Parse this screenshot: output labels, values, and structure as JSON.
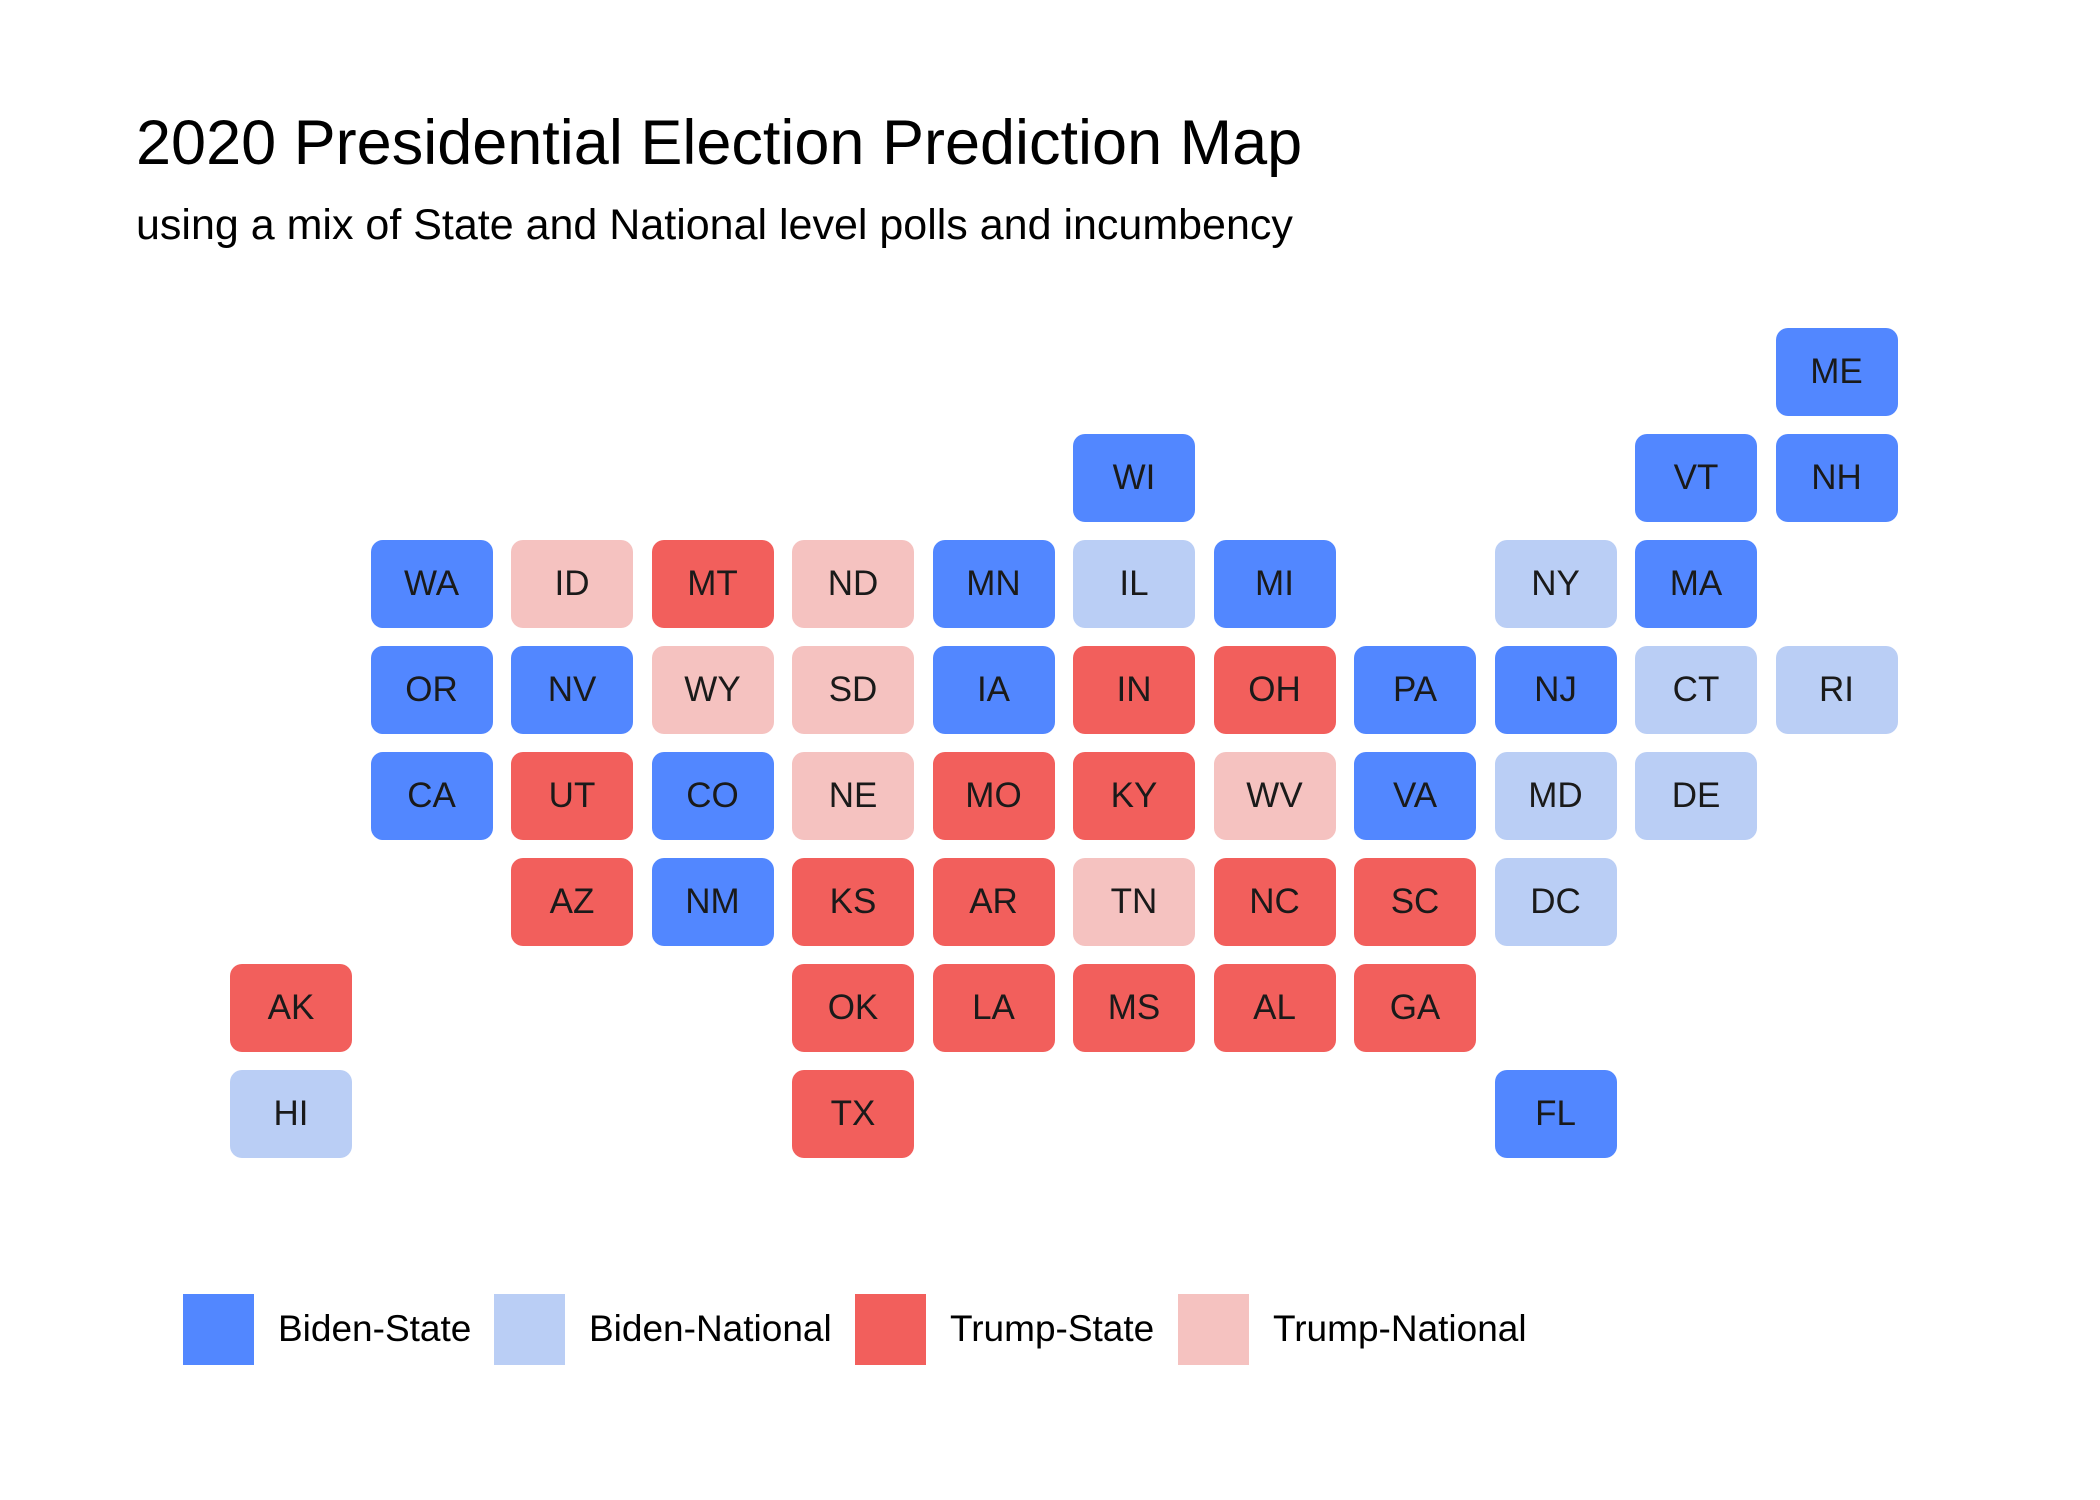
{
  "header": {
    "title": "2020 Presidential Election Prediction Map",
    "subtitle": "using a mix of State and National level polls and incumbency"
  },
  "colors": {
    "Biden-State": "#5287ff",
    "Biden-National": "#bacef5",
    "Trump-State": "#f25f5c",
    "Trump-National": "#f5c2c0"
  },
  "legend": [
    {
      "key": "Biden-State",
      "label": "Biden-State"
    },
    {
      "key": "Biden-National",
      "label": "Biden-National"
    },
    {
      "key": "Trump-State",
      "label": "Trump-State"
    },
    {
      "key": "Trump-National",
      "label": "Trump-National"
    }
  ],
  "states": [
    {
      "abbr": "ME",
      "row": 0,
      "col": 11,
      "category": "Biden-State"
    },
    {
      "abbr": "WI",
      "row": 1,
      "col": 6,
      "category": "Biden-State"
    },
    {
      "abbr": "VT",
      "row": 1,
      "col": 10,
      "category": "Biden-State"
    },
    {
      "abbr": "NH",
      "row": 1,
      "col": 11,
      "category": "Biden-State"
    },
    {
      "abbr": "WA",
      "row": 2,
      "col": 1,
      "category": "Biden-State"
    },
    {
      "abbr": "ID",
      "row": 2,
      "col": 2,
      "category": "Trump-National"
    },
    {
      "abbr": "MT",
      "row": 2,
      "col": 3,
      "category": "Trump-State"
    },
    {
      "abbr": "ND",
      "row": 2,
      "col": 4,
      "category": "Trump-National"
    },
    {
      "abbr": "MN",
      "row": 2,
      "col": 5,
      "category": "Biden-State"
    },
    {
      "abbr": "IL",
      "row": 2,
      "col": 6,
      "category": "Biden-National"
    },
    {
      "abbr": "MI",
      "row": 2,
      "col": 7,
      "category": "Biden-State"
    },
    {
      "abbr": "NY",
      "row": 2,
      "col": 9,
      "category": "Biden-National"
    },
    {
      "abbr": "MA",
      "row": 2,
      "col": 10,
      "category": "Biden-State"
    },
    {
      "abbr": "OR",
      "row": 3,
      "col": 1,
      "category": "Biden-State"
    },
    {
      "abbr": "NV",
      "row": 3,
      "col": 2,
      "category": "Biden-State"
    },
    {
      "abbr": "WY",
      "row": 3,
      "col": 3,
      "category": "Trump-National"
    },
    {
      "abbr": "SD",
      "row": 3,
      "col": 4,
      "category": "Trump-National"
    },
    {
      "abbr": "IA",
      "row": 3,
      "col": 5,
      "category": "Biden-State"
    },
    {
      "abbr": "IN",
      "row": 3,
      "col": 6,
      "category": "Trump-State"
    },
    {
      "abbr": "OH",
      "row": 3,
      "col": 7,
      "category": "Trump-State"
    },
    {
      "abbr": "PA",
      "row": 3,
      "col": 8,
      "category": "Biden-State"
    },
    {
      "abbr": "NJ",
      "row": 3,
      "col": 9,
      "category": "Biden-State"
    },
    {
      "abbr": "CT",
      "row": 3,
      "col": 10,
      "category": "Biden-National"
    },
    {
      "abbr": "RI",
      "row": 3,
      "col": 11,
      "category": "Biden-National"
    },
    {
      "abbr": "CA",
      "row": 4,
      "col": 1,
      "category": "Biden-State"
    },
    {
      "abbr": "UT",
      "row": 4,
      "col": 2,
      "category": "Trump-State"
    },
    {
      "abbr": "CO",
      "row": 4,
      "col": 3,
      "category": "Biden-State"
    },
    {
      "abbr": "NE",
      "row": 4,
      "col": 4,
      "category": "Trump-National"
    },
    {
      "abbr": "MO",
      "row": 4,
      "col": 5,
      "category": "Trump-State"
    },
    {
      "abbr": "KY",
      "row": 4,
      "col": 6,
      "category": "Trump-State"
    },
    {
      "abbr": "WV",
      "row": 4,
      "col": 7,
      "category": "Trump-National"
    },
    {
      "abbr": "VA",
      "row": 4,
      "col": 8,
      "category": "Biden-State"
    },
    {
      "abbr": "MD",
      "row": 4,
      "col": 9,
      "category": "Biden-National"
    },
    {
      "abbr": "DE",
      "row": 4,
      "col": 10,
      "category": "Biden-National"
    },
    {
      "abbr": "AZ",
      "row": 5,
      "col": 2,
      "category": "Trump-State"
    },
    {
      "abbr": "NM",
      "row": 5,
      "col": 3,
      "category": "Biden-State"
    },
    {
      "abbr": "KS",
      "row": 5,
      "col": 4,
      "category": "Trump-State"
    },
    {
      "abbr": "AR",
      "row": 5,
      "col": 5,
      "category": "Trump-State"
    },
    {
      "abbr": "TN",
      "row": 5,
      "col": 6,
      "category": "Trump-National"
    },
    {
      "abbr": "NC",
      "row": 5,
      "col": 7,
      "category": "Trump-State"
    },
    {
      "abbr": "SC",
      "row": 5,
      "col": 8,
      "category": "Trump-State"
    },
    {
      "abbr": "DC",
      "row": 5,
      "col": 9,
      "category": "Biden-National"
    },
    {
      "abbr": "AK",
      "row": 6,
      "col": 0,
      "category": "Trump-State"
    },
    {
      "abbr": "OK",
      "row": 6,
      "col": 4,
      "category": "Trump-State"
    },
    {
      "abbr": "LA",
      "row": 6,
      "col": 5,
      "category": "Trump-State"
    },
    {
      "abbr": "MS",
      "row": 6,
      "col": 6,
      "category": "Trump-State"
    },
    {
      "abbr": "AL",
      "row": 6,
      "col": 7,
      "category": "Trump-State"
    },
    {
      "abbr": "GA",
      "row": 6,
      "col": 8,
      "category": "Trump-State"
    },
    {
      "abbr": "HI",
      "row": 7,
      "col": 0,
      "category": "Biden-National"
    },
    {
      "abbr": "TX",
      "row": 7,
      "col": 4,
      "category": "Trump-State"
    },
    {
      "abbr": "FL",
      "row": 7,
      "col": 9,
      "category": "Biden-State"
    }
  ]
}
